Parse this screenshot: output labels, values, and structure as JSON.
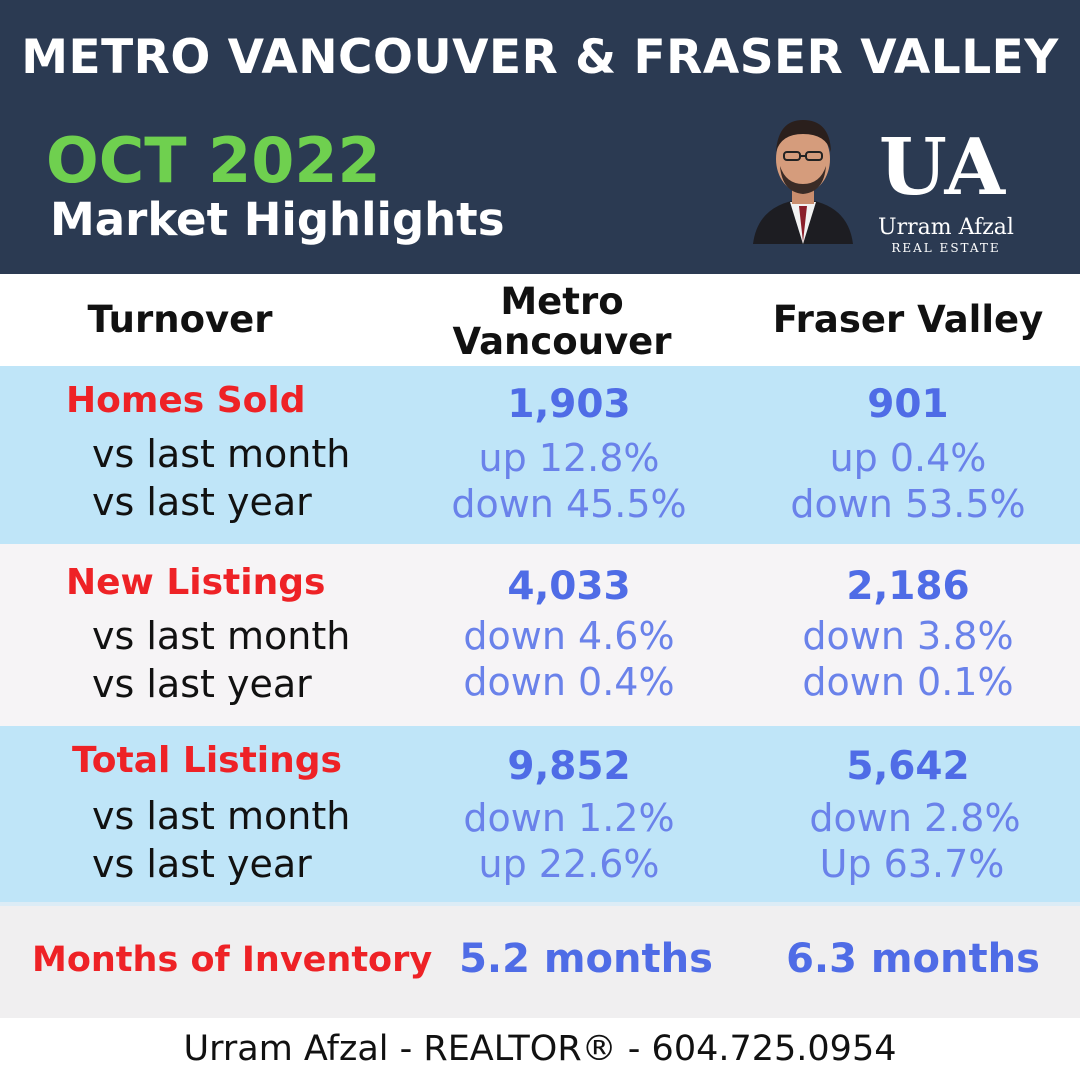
{
  "header": {
    "region_title": "METRO VANCOUVER & FRASER VALLEY",
    "period": "OCT 2022",
    "subtitle": "Market Highlights",
    "logo_mark": "UA",
    "logo_name": "Urram Afzal",
    "logo_tagline": "REAL ESTATE"
  },
  "columns": {
    "turnover": "Turnover",
    "metro_line1": "Metro",
    "metro_line2": "Vancouver",
    "fraser": "Fraser Valley"
  },
  "sections": [
    {
      "title": "Homes Sold",
      "row_labels": [
        "vs last month",
        "vs last year"
      ],
      "metro": {
        "total": "1,903",
        "month": "up 12.8%",
        "year": "down 45.5%"
      },
      "fraser": {
        "total": "901",
        "month": "up 0.4%",
        "year": "down 53.5%"
      }
    },
    {
      "title": "New Listings",
      "row_labels": [
        "vs last month",
        "vs last year"
      ],
      "metro": {
        "total": "4,033",
        "month": "down 4.6%",
        "year": "down 0.4%"
      },
      "fraser": {
        "total": "2,186",
        "month": "down 3.8%",
        "year": "down 0.1%"
      }
    },
    {
      "title": "Total Listings",
      "row_labels": [
        "vs last month",
        "vs last year"
      ],
      "metro": {
        "total": "9,852",
        "month": "down 1.2%",
        "year": "up 22.6%"
      },
      "fraser": {
        "total": "5,642",
        "month": "down 2.8%",
        "year": "Up 63.7%"
      }
    }
  ],
  "inventory": {
    "title": "Months of Inventory",
    "metro": "5.2 months",
    "fraser": "6.3 months"
  },
  "footer": "Urram Afzal - REALTOR® - 604.725.0954",
  "colors": {
    "header_bg": "#2b3a52",
    "accent_green": "#6fd04f",
    "label_red": "#ee2226",
    "value_blue": "#4f6ce6",
    "band_blue": "#bfe5f8"
  }
}
